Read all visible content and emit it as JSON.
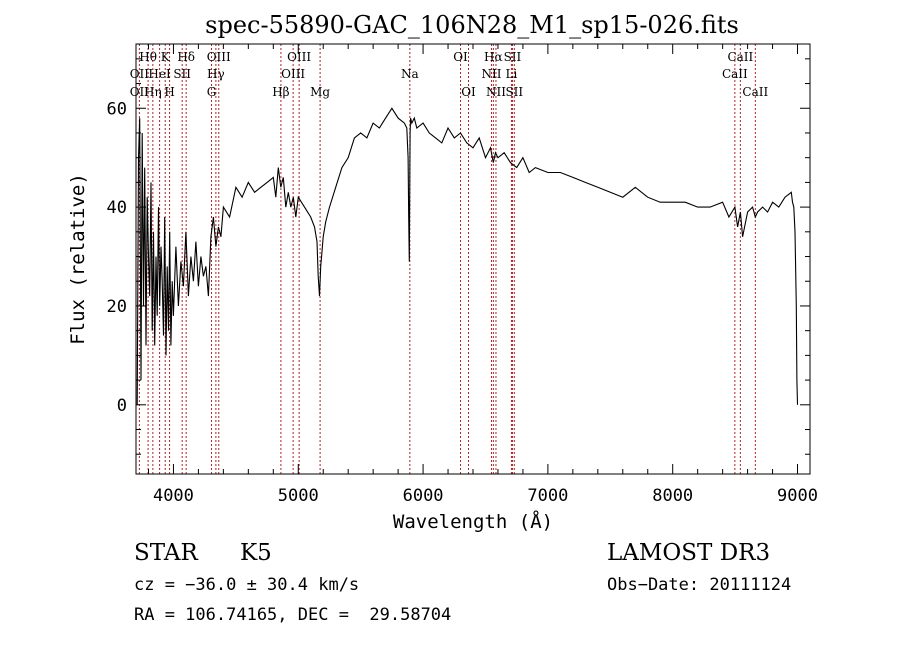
{
  "chart_data": {
    "type": "line",
    "title": "spec-55890-GAC_106N28_M1_sp15-026.fits",
    "xlabel": "Wavelength (Å)",
    "ylabel": "Flux (relative)",
    "xlim": [
      3700,
      9100
    ],
    "ylim": [
      -14,
      73
    ],
    "x_ticks": [
      4000,
      5000,
      6000,
      7000,
      8000,
      9000
    ],
    "x_minor_step": 200,
    "y_ticks": [
      0,
      20,
      40,
      60
    ],
    "y_minor_step": 5,
    "series": [
      {
        "name": "spectrum",
        "x": [
          3710,
          3720,
          3730,
          3740,
          3750,
          3760,
          3770,
          3780,
          3790,
          3800,
          3810,
          3820,
          3830,
          3840,
          3850,
          3860,
          3870,
          3880,
          3890,
          3900,
          3910,
          3920,
          3930,
          3940,
          3950,
          3960,
          3970,
          3980,
          3990,
          4000,
          4020,
          4040,
          4060,
          4080,
          4100,
          4120,
          4140,
          4160,
          4180,
          4200,
          4220,
          4240,
          4260,
          4280,
          4300,
          4320,
          4340,
          4360,
          4380,
          4400,
          4450,
          4500,
          4550,
          4600,
          4650,
          4700,
          4750,
          4800,
          4820,
          4840,
          4860,
          4880,
          4900,
          4920,
          4940,
          4960,
          4980,
          5000,
          5050,
          5100,
          5130,
          5150,
          5160,
          5170,
          5180,
          5190,
          5200,
          5220,
          5250,
          5300,
          5350,
          5400,
          5450,
          5500,
          5550,
          5600,
          5650,
          5700,
          5750,
          5800,
          5850,
          5870,
          5880,
          5885,
          5890,
          5893,
          5896,
          5900,
          5910,
          5930,
          5950,
          6000,
          6050,
          6100,
          6150,
          6200,
          6250,
          6300,
          6350,
          6400,
          6450,
          6500,
          6540,
          6563,
          6580,
          6600,
          6650,
          6700,
          6750,
          6800,
          6850,
          6900,
          7000,
          7100,
          7200,
          7300,
          7400,
          7500,
          7600,
          7700,
          7800,
          7900,
          8000,
          8100,
          8200,
          8300,
          8400,
          8450,
          8498,
          8520,
          8542,
          8560,
          8600,
          8640,
          8662,
          8680,
          8720,
          8760,
          8800,
          8850,
          8900,
          8950,
          8960,
          8970,
          8980,
          8990,
          8995,
          9000
        ],
        "y": [
          0,
          50,
          58,
          5,
          55,
          20,
          48,
          12,
          42,
          30,
          22,
          45,
          15,
          35,
          12,
          30,
          18,
          40,
          20,
          32,
          25,
          14,
          38,
          10,
          28,
          15,
          35,
          12,
          25,
          18,
          32,
          20,
          29,
          24,
          35,
          22,
          30,
          25,
          33,
          24,
          30,
          26,
          28,
          22,
          34,
          38,
          32,
          36,
          34,
          40,
          38,
          44,
          42,
          45,
          43,
          44,
          45,
          46,
          42,
          48,
          44,
          46,
          40,
          43,
          40,
          42,
          38,
          42,
          40,
          38,
          36,
          33,
          26,
          22,
          28,
          31,
          34,
          37,
          40,
          44,
          48,
          50,
          54,
          55,
          54,
          57,
          56,
          58,
          60,
          58,
          57,
          56,
          50,
          38,
          29,
          42,
          55,
          58,
          57,
          58,
          56,
          57,
          55,
          54,
          53,
          56,
          54,
          55,
          53,
          52,
          54,
          50,
          52,
          49,
          51,
          50,
          51,
          49,
          48,
          50,
          47,
          48,
          47,
          47,
          46,
          45,
          44,
          43,
          42,
          44,
          42,
          41,
          41,
          41,
          40,
          40,
          41,
          38,
          40,
          36,
          39,
          34,
          39,
          40,
          38,
          39,
          40,
          39,
          41,
          40,
          42,
          43,
          41,
          40,
          35,
          20,
          5,
          0
        ]
      }
    ],
    "line_labels": [
      {
        "name": "OII",
        "wavelength": 3727,
        "row": 2
      },
      {
        "name": "Hθ",
        "wavelength": 3797,
        "row": 0
      },
      {
        "name": "OII",
        "wavelength": 3727,
        "row": 1
      },
      {
        "name": "Hη",
        "wavelength": 3835,
        "row": 2
      },
      {
        "name": "HeI",
        "wavelength": 3889,
        "row": 1
      },
      {
        "name": "K",
        "wavelength": 3934,
        "row": 0
      },
      {
        "name": "H",
        "wavelength": 3969,
        "row": 2
      },
      {
        "name": "SII",
        "wavelength": 4070,
        "row": 1
      },
      {
        "name": "Hδ",
        "wavelength": 4102,
        "row": 0
      },
      {
        "name": "OIII",
        "wavelength": 4363,
        "row": 0
      },
      {
        "name": "Hγ",
        "wavelength": 4340,
        "row": 1
      },
      {
        "name": "G",
        "wavelength": 4305,
        "row": 2
      },
      {
        "name": "OIII",
        "wavelength": 5007,
        "row": 0
      },
      {
        "name": "OIII",
        "wavelength": 4959,
        "row": 1
      },
      {
        "name": "Hβ",
        "wavelength": 4861,
        "row": 2
      },
      {
        "name": "Mg",
        "wavelength": 5175,
        "row": 2
      },
      {
        "name": "Na",
        "wavelength": 5894,
        "row": 1
      },
      {
        "name": "OI",
        "wavelength": 6300,
        "row": 0
      },
      {
        "name": "OI",
        "wavelength": 6364,
        "row": 2
      },
      {
        "name": "Hα",
        "wavelength": 6563,
        "row": 0
      },
      {
        "name": "NII",
        "wavelength": 6548,
        "row": 1
      },
      {
        "name": "NII",
        "wavelength": 6584,
        "row": 2
      },
      {
        "name": "SII",
        "wavelength": 6716,
        "row": 0
      },
      {
        "name": "Li",
        "wavelength": 6708,
        "row": 1
      },
      {
        "name": "SII",
        "wavelength": 6731,
        "row": 2
      },
      {
        "name": "CaII",
        "wavelength": 8542,
        "row": 0
      },
      {
        "name": "CaII",
        "wavelength": 8498,
        "row": 1
      },
      {
        "name": "CaII",
        "wavelength": 8662,
        "row": 2
      }
    ],
    "line_color": "#b22222",
    "spectrum_color": "#000000"
  },
  "footer": {
    "class": "STAR",
    "subclass": "K5",
    "survey": "LAMOST DR3",
    "cz": "cz = −36.0 ± 30.4 km/s",
    "obs_date": "Obs−Date: 20111124",
    "radec": "RA = 106.74165, DEC =  29.58704"
  }
}
